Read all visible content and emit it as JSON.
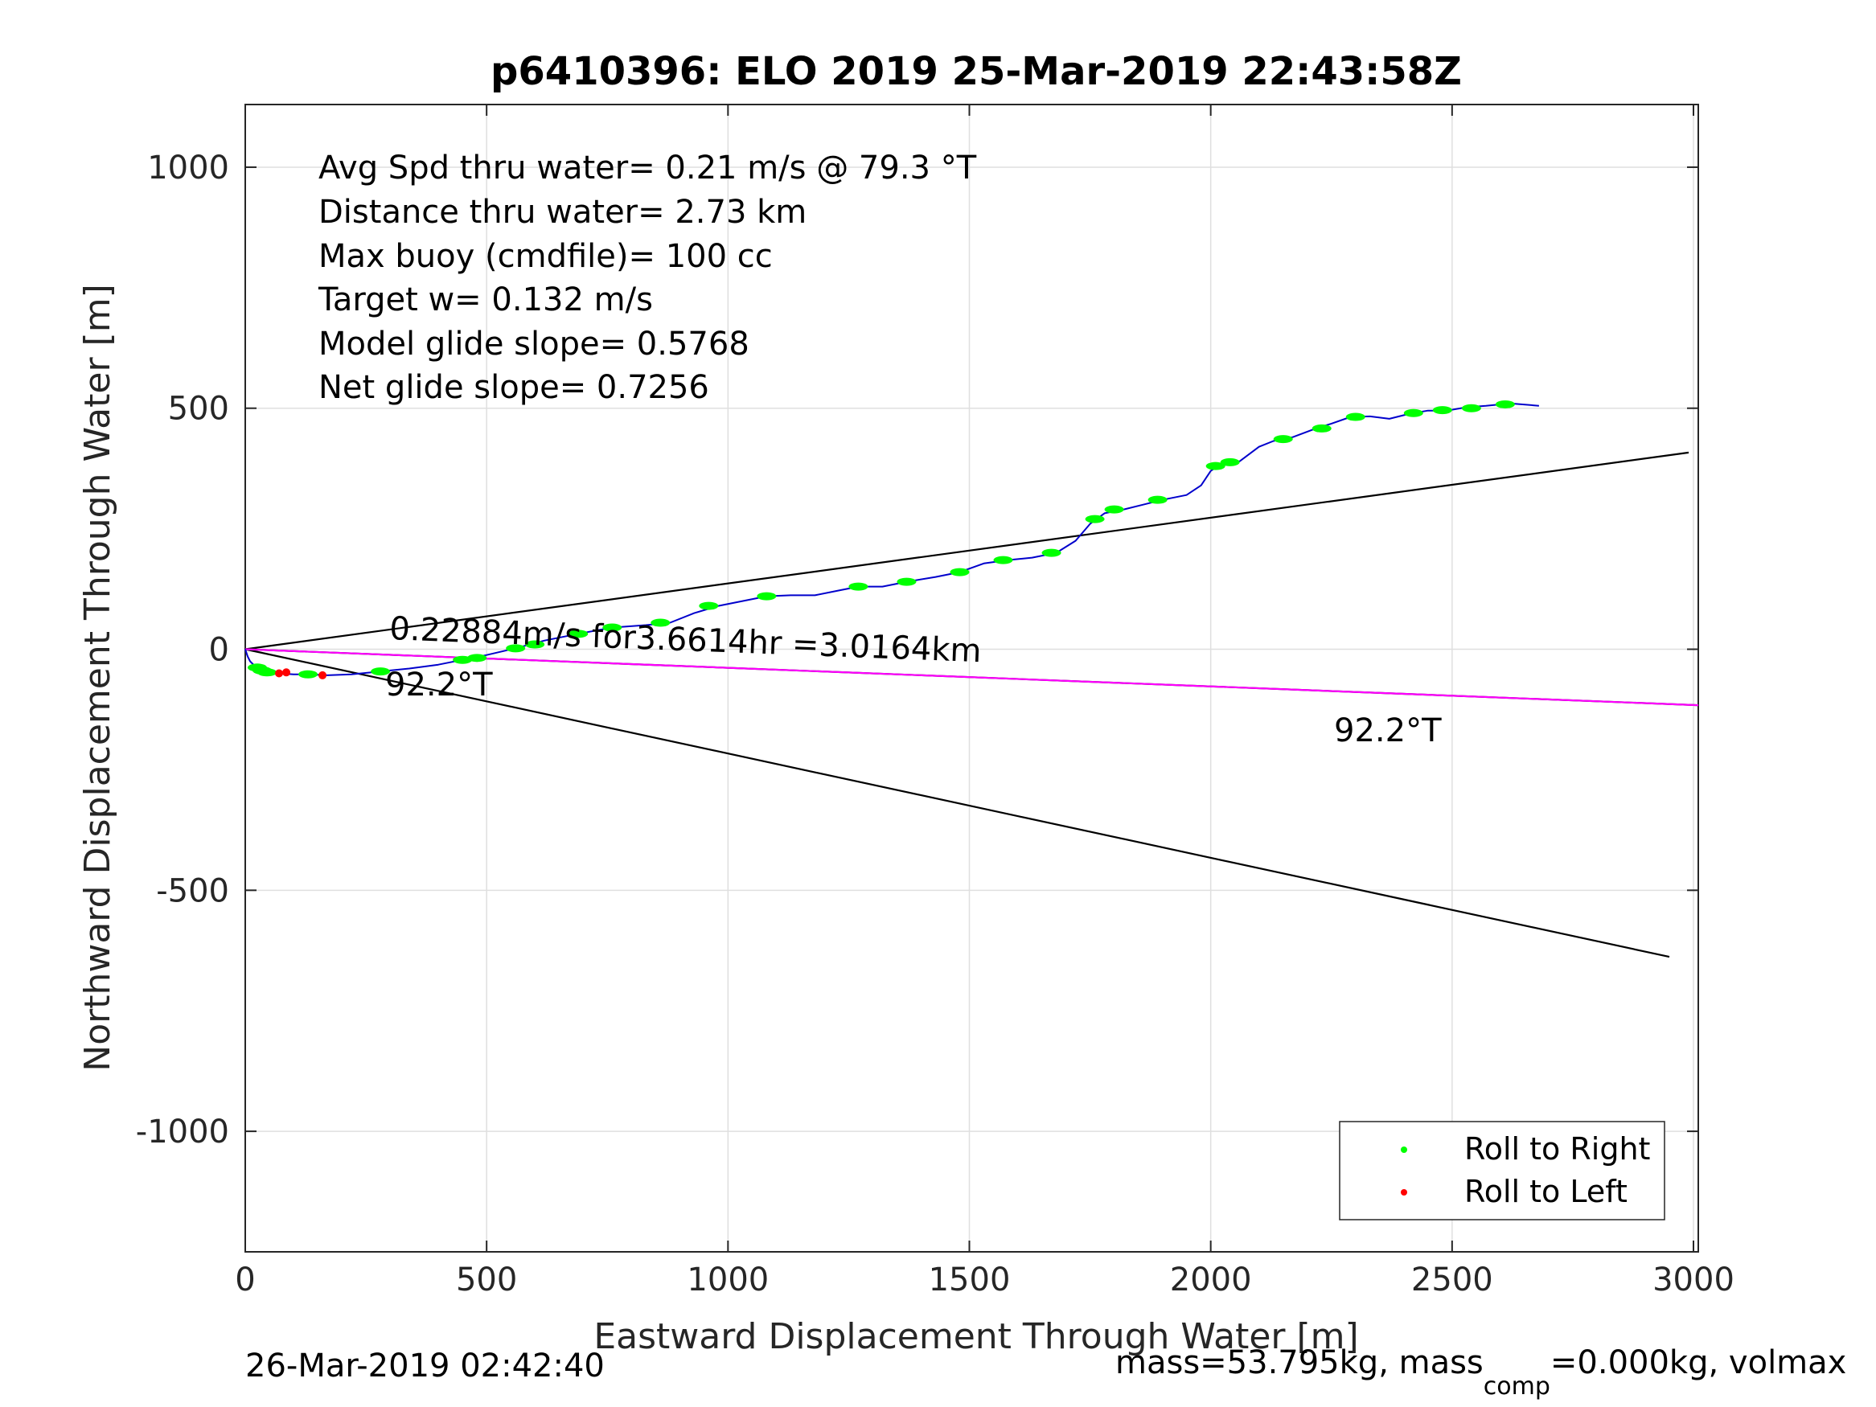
{
  "chart_data": {
    "type": "line",
    "title": "p6410396: ELO 2019 25-Mar-2019 22:43:58Z",
    "xlabel": "Eastward Displacement Through Water [m]",
    "ylabel": "Northward Displacement Through Water [m]",
    "xlim": [
      0,
      3010
    ],
    "ylim": [
      -1250,
      1130
    ],
    "xticks": [
      0,
      500,
      1000,
      1500,
      2000,
      2500,
      3000
    ],
    "yticks": [
      -1000,
      -500,
      0,
      500,
      1000
    ],
    "grid": true,
    "legend": {
      "placement": "bottom-right",
      "entries": [
        {
          "label": "Roll to Right",
          "color": "#00ff00"
        },
        {
          "label": "Roll to Left",
          "color": "#ff0000"
        }
      ]
    },
    "stats": [
      "Avg Spd thru water=  0.21 m/s @  79.3 °T",
      "Distance thru water=  2.73 km",
      "Max buoy (cmdfile)= 100 cc",
      "Target w= 0.132 m/s",
      "Model glide slope= 0.5768",
      "Net glide slope= 0.7256"
    ],
    "annotations": {
      "current_text": "0.22884m/s for3.6614hr =3.0164km",
      "heading_near": "92.2°T",
      "heading_far": "92.2°T"
    },
    "footer": {
      "left": "26-Mar-2019 02:42:40",
      "right_pre": "mass=53.795kg, mass",
      "right_sub": "comp",
      "right_post": "=0.000kg, volmax"
    },
    "lines": [
      {
        "name": "upper-bound",
        "color": "#000000",
        "x": [
          0,
          2990
        ],
        "y": [
          0,
          408
        ]
      },
      {
        "name": "lower-bound",
        "color": "#000000",
        "x": [
          0,
          2950
        ],
        "y": [
          0,
          -638
        ]
      },
      {
        "name": "heading-line",
        "color": "#000000",
        "x": [
          0,
          3010
        ],
        "y": [
          0,
          -116
        ]
      },
      {
        "name": "heading-line-overlay",
        "color": "#ff00ff",
        "x": [
          0,
          3010
        ],
        "y": [
          0,
          -116
        ]
      }
    ],
    "track": {
      "color": "#0000cc",
      "x": [
        0,
        5,
        10,
        20,
        35,
        50,
        70,
        100,
        130,
        170,
        220,
        280,
        340,
        400,
        450,
        500,
        560,
        620,
        690,
        760,
        830,
        880,
        930,
        980,
        1030,
        1080,
        1130,
        1180,
        1230,
        1270,
        1320,
        1370,
        1430,
        1480,
        1530,
        1580,
        1630,
        1680,
        1720,
        1750,
        1780,
        1820,
        1860,
        1900,
        1950,
        1980,
        2000,
        2020,
        2060,
        2100,
        2130,
        2170,
        2210,
        2250,
        2290,
        2330,
        2370,
        2410,
        2450,
        2490,
        2530,
        2570,
        2620,
        2680
      ],
      "y": [
        0,
        -15,
        -25,
        -35,
        -42,
        -47,
        -50,
        -52,
        -52,
        -54,
        -52,
        -46,
        -40,
        -32,
        -22,
        -12,
        2,
        18,
        32,
        45,
        50,
        55,
        75,
        90,
        100,
        110,
        112,
        112,
        122,
        130,
        130,
        140,
        150,
        160,
        178,
        185,
        190,
        200,
        225,
        260,
        282,
        290,
        300,
        310,
        320,
        340,
        370,
        383,
        390,
        420,
        432,
        440,
        455,
        468,
        482,
        483,
        478,
        488,
        495,
        495,
        502,
        505,
        510,
        505
      ]
    },
    "roll_right_points": {
      "color": "#00ff00",
      "x": [
        25,
        35,
        45,
        130,
        280,
        450,
        480,
        560,
        600,
        690,
        760,
        860,
        960,
        1080,
        1270,
        1370,
        1480,
        1570,
        1670,
        1760,
        1800,
        1890,
        2010,
        2040,
        2150,
        2230,
        2300,
        2420,
        2480,
        2540,
        2610
      ],
      "y": [
        -38,
        -44,
        -48,
        -52,
        -46,
        -22,
        -18,
        2,
        10,
        32,
        45,
        55,
        90,
        110,
        130,
        140,
        160,
        185,
        200,
        270,
        290,
        310,
        380,
        388,
        436,
        458,
        482,
        490,
        496,
        500,
        508
      ]
    },
    "roll_left_points": {
      "color": "#ff0000",
      "x": [
        70,
        85,
        160
      ],
      "y": [
        -50,
        -48,
        -54
      ]
    }
  }
}
